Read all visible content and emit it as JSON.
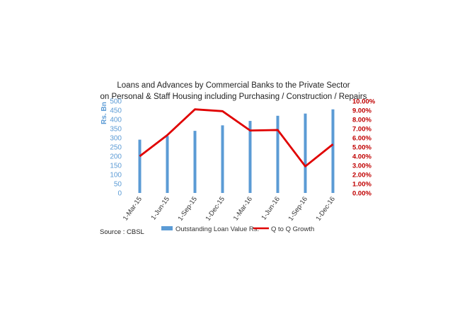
{
  "chart_data": {
    "type": "bar",
    "title_lines": [
      "Loans and Advances by Commercial Banks to the Private Sector",
      "on Personal & Staff Housing including Purchasing / Construction / Repairs"
    ],
    "categories": [
      "1-Mar-15",
      "1-Jun-15",
      "1-Sep-15",
      "1-Dec-15",
      "1-Mar-16",
      "1-Jun-16",
      "1-Sep-16",
      "1-Dec-16"
    ],
    "ylabel": "Rs. Bn",
    "ylim": [
      0,
      500
    ],
    "y_ticks": [
      0,
      50,
      100,
      150,
      200,
      250,
      300,
      350,
      400,
      450,
      500
    ],
    "y2lim": [
      0,
      10
    ],
    "y2_ticks": [
      "0.00%",
      "1.00%",
      "2.00%",
      "3.00%",
      "4.00%",
      "5.00%",
      "6.00%",
      "7.00%",
      "8.00%",
      "9.00%",
      "10.00%"
    ],
    "series": [
      {
        "name": "Outstanding Loan Value Rs.",
        "type": "bar",
        "axis": "left",
        "color": "#5b9bd5",
        "values": [
          290,
          310,
          338,
          368,
          392,
          420,
          432,
          455
        ]
      },
      {
        "name": "Q to Q Growth",
        "type": "line",
        "axis": "right",
        "color": "#e00000",
        "values": [
          4.0,
          6.3,
          9.1,
          8.9,
          6.8,
          6.85,
          2.9,
          5.3
        ]
      }
    ],
    "grid": false,
    "legend_position": "bottom",
    "source": "Source : CBSL"
  }
}
